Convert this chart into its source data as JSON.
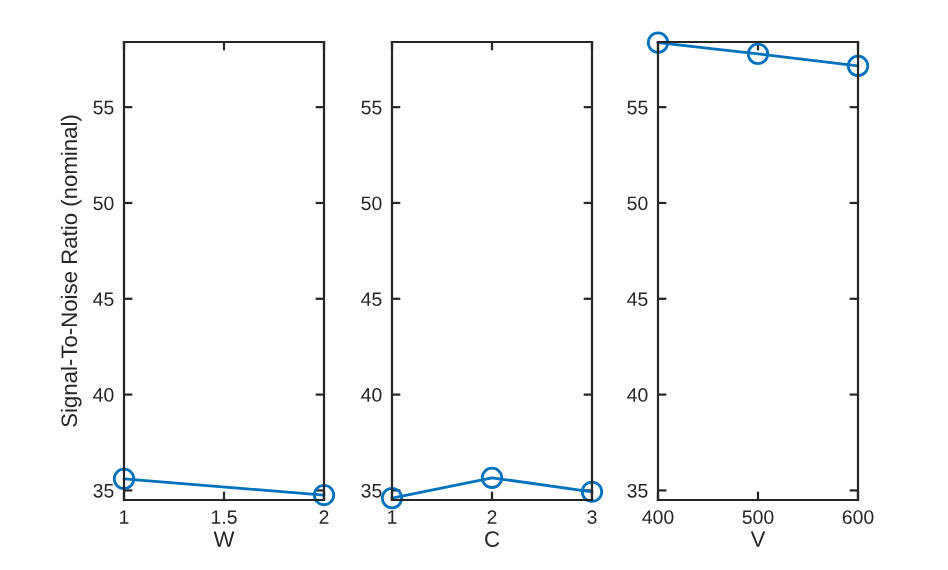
{
  "chart_data": [
    {
      "type": "line",
      "xlabel": "W",
      "ylabel": "Signal-To-Noise Ratio (nominal)",
      "x": [
        1,
        2
      ],
      "series": [
        {
          "color": "#0072bd",
          "values": [
            35.6,
            34.76
          ]
        }
      ],
      "xlim": [
        1,
        2
      ],
      "xticks": [
        1,
        1.5,
        2
      ],
      "ylim": [
        34.5,
        58.4
      ],
      "yticks": [
        35,
        40,
        45,
        50,
        55
      ],
      "marker": "circle",
      "grid": false
    },
    {
      "type": "line",
      "xlabel": "C",
      "x": [
        1,
        2,
        3
      ],
      "series": [
        {
          "color": "#0072bd",
          "values": [
            34.6,
            35.66,
            34.93
          ]
        }
      ],
      "xlim": [
        1,
        3
      ],
      "xticks": [
        1,
        2,
        3
      ],
      "ylim": [
        34.5,
        58.4
      ],
      "yticks": [
        35,
        40,
        45,
        50,
        55
      ],
      "marker": "circle",
      "grid": false
    },
    {
      "type": "line",
      "xlabel": "V",
      "x": [
        400,
        500,
        600
      ],
      "series": [
        {
          "color": "#0072bd",
          "values": [
            58.37,
            57.78,
            57.15
          ]
        }
      ],
      "xlim": [
        400,
        600
      ],
      "xticks": [
        400,
        500,
        600
      ],
      "ylim": [
        34.5,
        58.4
      ],
      "yticks": [
        35,
        40,
        45,
        50,
        55
      ],
      "marker": "circle",
      "grid": false
    }
  ]
}
